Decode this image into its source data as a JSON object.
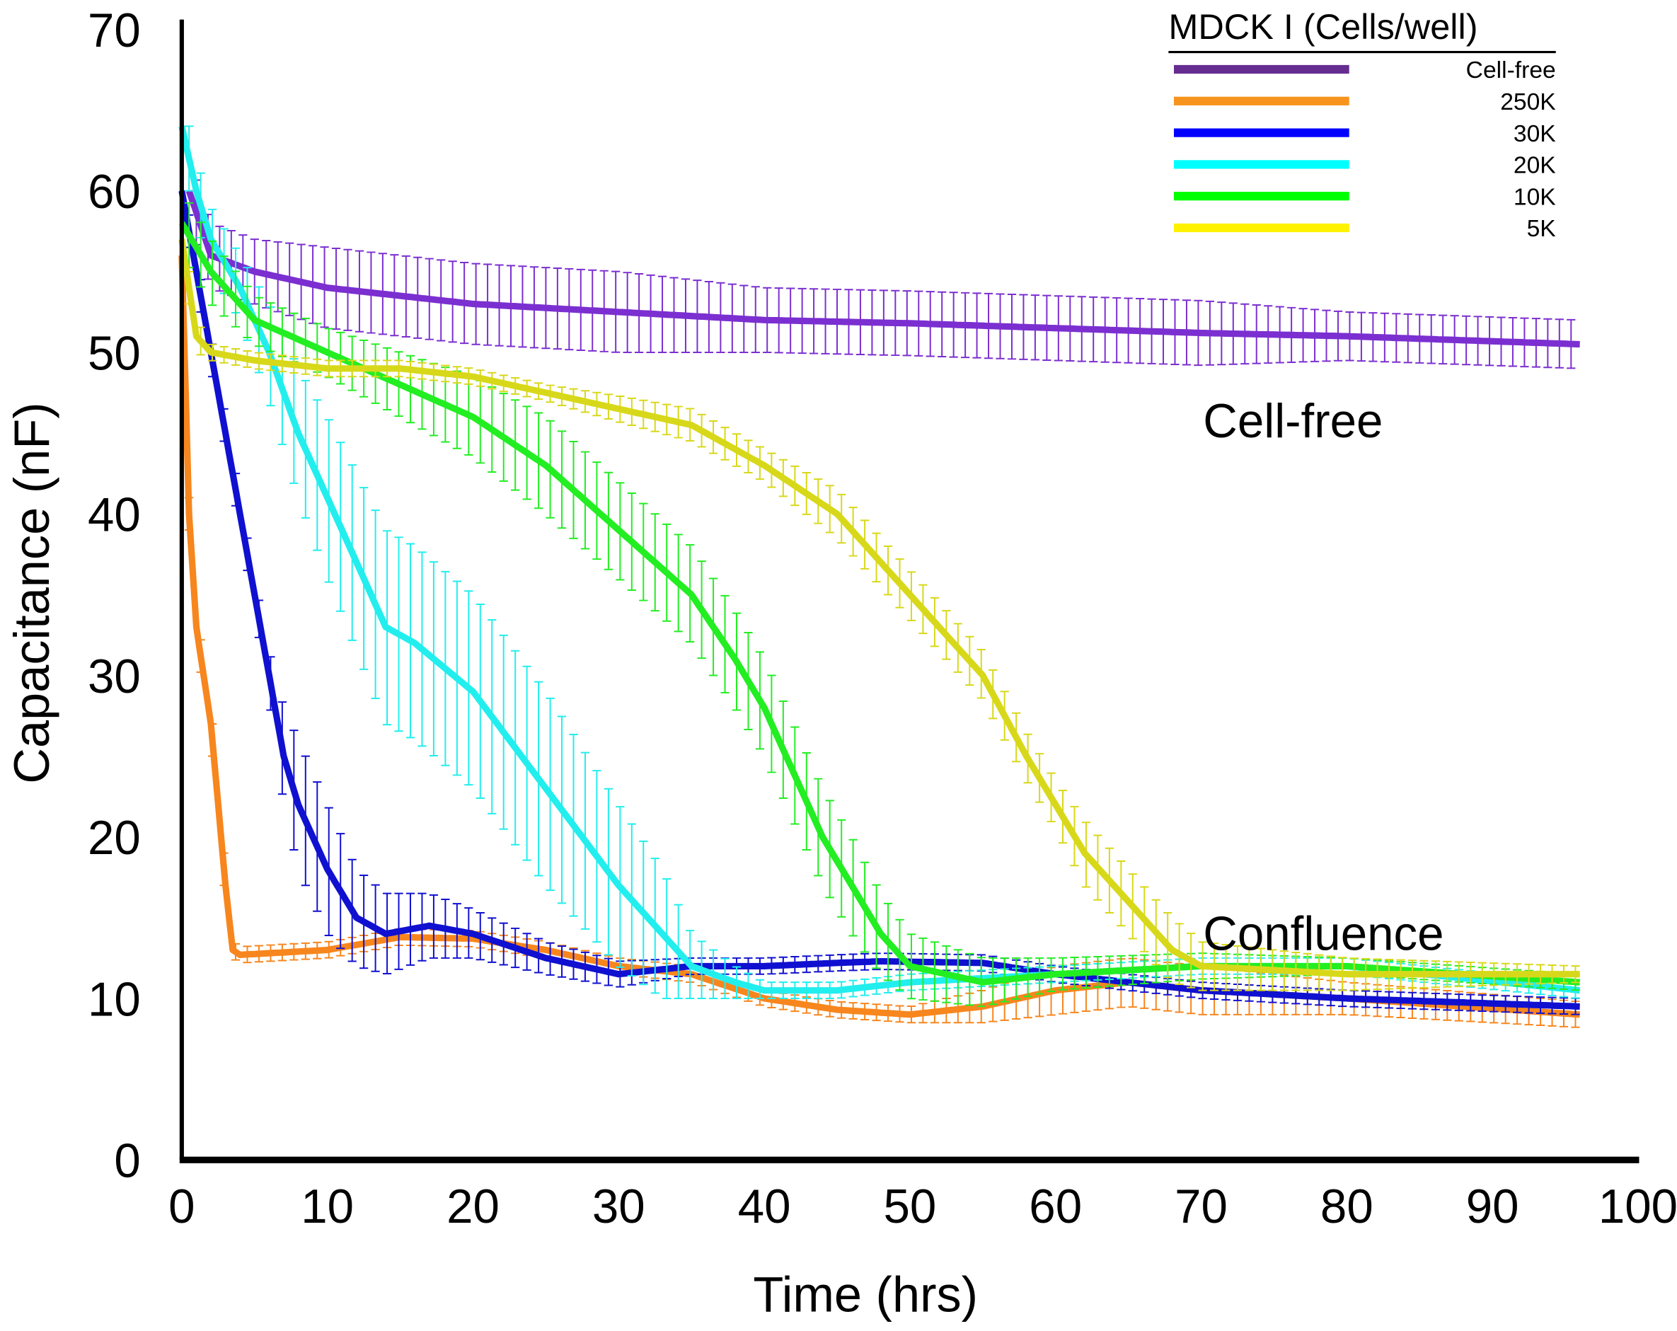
{
  "chart_data": {
    "type": "line",
    "title": "",
    "xlabel": "Time (hrs)",
    "ylabel": "Capacitance (nF)",
    "xlim": [
      0,
      100
    ],
    "ylim": [
      0,
      70
    ],
    "xticks": [
      "0",
      "10",
      "20",
      "30",
      "40",
      "50",
      "60",
      "70",
      "80",
      "90",
      "100"
    ],
    "yticks": [
      "0",
      "10",
      "20",
      "30",
      "40",
      "50",
      "60",
      "70"
    ],
    "grid": false,
    "legend": {
      "title": "MDCK I  (Cells/well)",
      "position": "top-right"
    },
    "annotations": [
      {
        "text": "Cell-free",
        "x": 70,
        "y": 45
      },
      {
        "text": "Confluence",
        "x": 70,
        "y": 13.5
      }
    ],
    "series": [
      {
        "name": "Cell-free",
        "color": "#7b2fd0",
        "legend_color": "#662d91",
        "x": [
          0.5,
          2,
          5,
          10,
          20,
          30,
          40,
          50,
          60,
          70,
          80,
          96
        ],
        "y": [
          60,
          56,
          55,
          54,
          53,
          52.5,
          52,
          51.8,
          51.5,
          51.2,
          51,
          50.5
        ],
        "err": [
          2,
          2,
          2,
          2.5,
          2.5,
          2.5,
          2,
          2,
          2,
          2,
          1.5,
          1.5
        ]
      },
      {
        "name": "250K",
        "color": "#f7861e",
        "legend_color": "#f7941d",
        "x": [
          0,
          0.5,
          1,
          2,
          3,
          3.5,
          4,
          6,
          10,
          15,
          20,
          25,
          30,
          35,
          40,
          45,
          50,
          55,
          60,
          65,
          70,
          80,
          96
        ],
        "y": [
          56,
          40,
          33,
          27,
          17,
          13,
          12.7,
          12.8,
          13,
          13.8,
          13.7,
          13,
          12,
          11.5,
          10,
          9.3,
          9,
          9.5,
          10.5,
          11,
          10.5,
          10,
          9
        ],
        "err": [
          1,
          1,
          1,
          1,
          1,
          0.5,
          0.5,
          0.5,
          0.5,
          0.5,
          0.5,
          0.5,
          0.5,
          0.5,
          0.5,
          0.5,
          0.5,
          1,
          1.5,
          1.5,
          1.5,
          1,
          0.8
        ]
      },
      {
        "name": "30K",
        "color": "#1010d0",
        "legend_color": "#0000ff",
        "x": [
          0,
          2,
          3,
          4,
          5,
          6,
          7,
          8,
          10,
          12,
          14,
          17,
          20,
          25,
          30,
          35,
          40,
          45,
          48,
          55,
          60,
          70,
          80,
          96
        ],
        "y": [
          60,
          50,
          45,
          40,
          35,
          30,
          25,
          22,
          18,
          15,
          14,
          14.5,
          14,
          12.5,
          11.5,
          12,
          12,
          12.2,
          12.3,
          12.2,
          11.5,
          10.5,
          10,
          9.5
        ],
        "err": [
          1,
          1,
          1,
          1,
          1,
          1.5,
          3,
          4,
          4,
          3,
          2.5,
          2,
          1.5,
          1,
          0.8,
          0.5,
          0.5,
          0.5,
          0.5,
          0.5,
          0.5,
          0.5,
          0.5,
          0.5
        ]
      },
      {
        "name": "20K",
        "color": "#22eeee",
        "legend_color": "#00ffff",
        "x": [
          0,
          1,
          2,
          4,
          6,
          8,
          10,
          12,
          14,
          16,
          20,
          25,
          30,
          33,
          35,
          38,
          40,
          45,
          50,
          60,
          70,
          80,
          96
        ],
        "y": [
          64,
          60,
          57,
          54,
          50,
          45,
          41,
          37,
          33,
          32,
          29,
          23,
          17,
          14,
          12,
          11,
          10.5,
          10.5,
          11,
          11.5,
          12,
          12,
          10.5
        ],
        "err": [
          2,
          2,
          2,
          2,
          3,
          4,
          5,
          5.5,
          6,
          6,
          6,
          6,
          5,
          4,
          2,
          1,
          0.5,
          0.5,
          0.5,
          0.5,
          0.5,
          0.5,
          0.5
        ]
      },
      {
        "name": "10K",
        "color": "#22ee22",
        "legend_color": "#00ff00",
        "x": [
          0,
          2,
          5,
          10,
          15,
          20,
          25,
          30,
          35,
          38,
          40,
          42,
          44,
          46,
          48,
          50,
          55,
          60,
          70,
          80,
          96
        ],
        "y": [
          58,
          55,
          52,
          50,
          48,
          46,
          43,
          39,
          35,
          31,
          28,
          24,
          20,
          17,
          14,
          12,
          11,
          11.5,
          12,
          12,
          11
        ],
        "err": [
          2,
          2,
          1.5,
          1.5,
          2,
          2.5,
          3,
          3,
          3,
          3,
          3,
          3,
          3,
          3,
          2.5,
          2,
          1.5,
          1,
          0.8,
          0.5,
          0.5
        ]
      },
      {
        "name": "5K",
        "color": "#d8d81a",
        "legend_color": "#fff200",
        "x": [
          0,
          1,
          2,
          5,
          10,
          15,
          20,
          25,
          30,
          35,
          40,
          45,
          48,
          50,
          55,
          58,
          60,
          62,
          64,
          66,
          68,
          70,
          80,
          96
        ],
        "y": [
          57,
          51,
          50,
          49.5,
          49,
          49,
          48.5,
          47.5,
          46.5,
          45.5,
          43,
          40,
          37,
          35,
          30,
          25,
          22,
          19,
          17,
          15,
          13,
          12,
          11.5,
          11.5
        ],
        "err": [
          1,
          1,
          0.5,
          0.5,
          0.5,
          0.5,
          0.5,
          0.5,
          0.8,
          1,
          1,
          1.5,
          1.5,
          1.5,
          1.5,
          1.5,
          1.5,
          2,
          2,
          2,
          2,
          1.5,
          1,
          0.5
        ]
      }
    ]
  }
}
